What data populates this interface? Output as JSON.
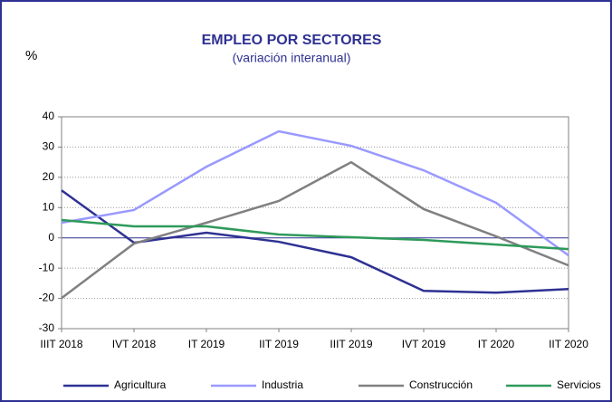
{
  "chart_data": {
    "type": "line",
    "title": "EMPLEO POR SECTORES",
    "subtitle": "(variación interanual)",
    "y_label": "%",
    "categories": [
      "IIIT 2018",
      "IVT 2018",
      "IT 2019",
      "IIT 2019",
      "IIIT 2019",
      "IVT 2019",
      "IT 2020",
      "IIT 2020"
    ],
    "series": [
      {
        "name": "Agricultura",
        "color": "#2e3192",
        "values": [
          15.7,
          -1.6,
          1.7,
          -1.3,
          -6.4,
          -17.5,
          -18.1,
          -16.9
        ]
      },
      {
        "name": "Industria",
        "color": "#9999ff",
        "values": [
          5,
          9.2,
          23.5,
          35.2,
          30.4,
          22.3,
          11.6,
          -5.8
        ]
      },
      {
        "name": "Construcción",
        "color": "#808080",
        "values": [
          -19.9,
          -1.9,
          5,
          12.2,
          25,
          9.5,
          0.5,
          -9.1
        ]
      },
      {
        "name": "Servicios",
        "color": "#2e9a5a",
        "values": [
          5.9,
          3.8,
          3.8,
          1.1,
          0.2,
          -0.7,
          -2.2,
          -3.7
        ]
      }
    ],
    "ylim": [
      -30,
      40
    ],
    "yticks": [
      -30,
      -20,
      -10,
      0,
      10,
      20,
      30,
      40
    ],
    "grid": true,
    "legend": "bottom"
  }
}
